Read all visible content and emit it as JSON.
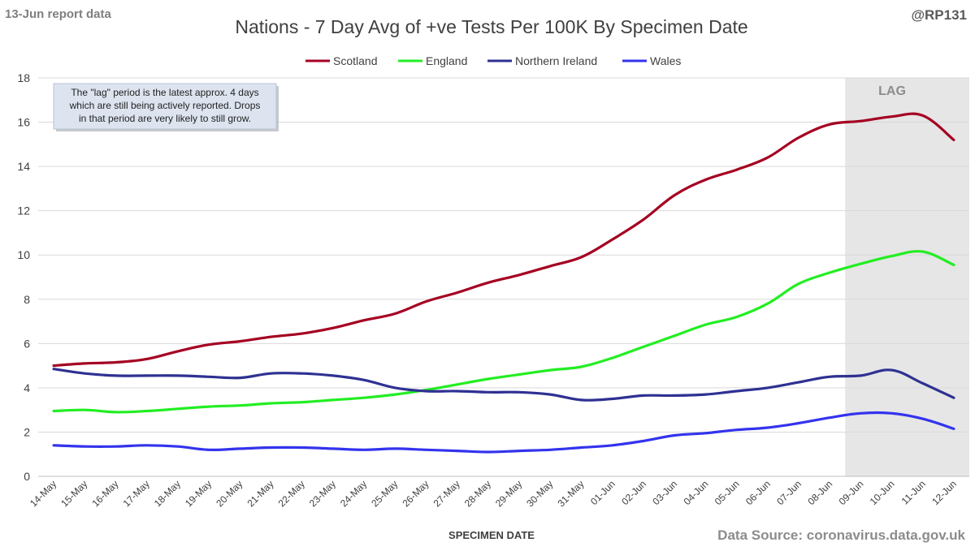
{
  "report_label": "13-Jun report data",
  "handle": "@RP131",
  "source": "Data Source: coronavirus.data.gov.uk",
  "note_lines": [
    "The \"lag\" period is the latest approx. 4 days",
    "which are still being actively reported. Drops",
    "in that period are very likely to still grow."
  ],
  "lag_label": "LAG",
  "colors": {
    "Scotland": "#a50021",
    "England": "#22ee22",
    "Northern Ireland": "#2e3192",
    "Wales": "#3333ee",
    "lag_shade": "#e6e6e6",
    "grid": "#d9d9d9",
    "axis_text": "#404040"
  },
  "chart_data": {
    "type": "line",
    "title": "Nations - 7 Day Avg of +ve Tests Per 100K By Specimen Date",
    "xlabel": "SPECIMEN DATE",
    "ylabel": "",
    "ylim": [
      0,
      18
    ],
    "yticks": [
      0,
      2,
      4,
      6,
      8,
      10,
      12,
      14,
      16,
      18
    ],
    "grid": true,
    "legend_position": "top",
    "lag_period": [
      "09-Jun",
      "12-Jun"
    ],
    "categories": [
      "14-May",
      "15-May",
      "16-May",
      "17-May",
      "18-May",
      "19-May",
      "20-May",
      "21-May",
      "22-May",
      "23-May",
      "24-May",
      "25-May",
      "26-May",
      "27-May",
      "28-May",
      "29-May",
      "30-May",
      "31-May",
      "01-Jun",
      "02-Jun",
      "03-Jun",
      "04-Jun",
      "05-Jun",
      "06-Jun",
      "07-Jun",
      "08-Jun",
      "09-Jun",
      "10-Jun",
      "11-Jun",
      "12-Jun"
    ],
    "series": [
      {
        "name": "Scotland",
        "values": [
          5.0,
          5.1,
          5.15,
          5.3,
          5.65,
          5.95,
          6.1,
          6.3,
          6.45,
          6.7,
          7.05,
          7.35,
          7.9,
          8.3,
          8.75,
          9.1,
          9.5,
          9.9,
          10.7,
          11.6,
          12.7,
          13.4,
          13.85,
          14.4,
          15.3,
          15.9,
          16.05,
          16.25,
          16.3,
          15.2
        ]
      },
      {
        "name": "England",
        "values": [
          2.95,
          3.0,
          2.9,
          2.95,
          3.05,
          3.15,
          3.2,
          3.3,
          3.35,
          3.45,
          3.55,
          3.7,
          3.9,
          4.15,
          4.4,
          4.6,
          4.8,
          4.95,
          5.35,
          5.85,
          6.35,
          6.85,
          7.2,
          7.8,
          8.7,
          9.2,
          9.6,
          9.95,
          10.15,
          9.55
        ]
      },
      {
        "name": "Northern Ireland",
        "values": [
          4.85,
          4.65,
          4.55,
          4.55,
          4.55,
          4.5,
          4.45,
          4.65,
          4.65,
          4.55,
          4.35,
          4.0,
          3.85,
          3.85,
          3.8,
          3.8,
          3.7,
          3.45,
          3.5,
          3.65,
          3.65,
          3.7,
          3.85,
          4.0,
          4.25,
          4.5,
          4.55,
          4.8,
          4.2,
          3.55
        ]
      },
      {
        "name": "Wales",
        "values": [
          1.4,
          1.35,
          1.35,
          1.4,
          1.35,
          1.2,
          1.25,
          1.3,
          1.3,
          1.25,
          1.2,
          1.25,
          1.2,
          1.15,
          1.1,
          1.15,
          1.2,
          1.3,
          1.4,
          1.6,
          1.85,
          1.95,
          2.1,
          2.2,
          2.4,
          2.65,
          2.85,
          2.85,
          2.6,
          2.15
        ]
      }
    ]
  }
}
